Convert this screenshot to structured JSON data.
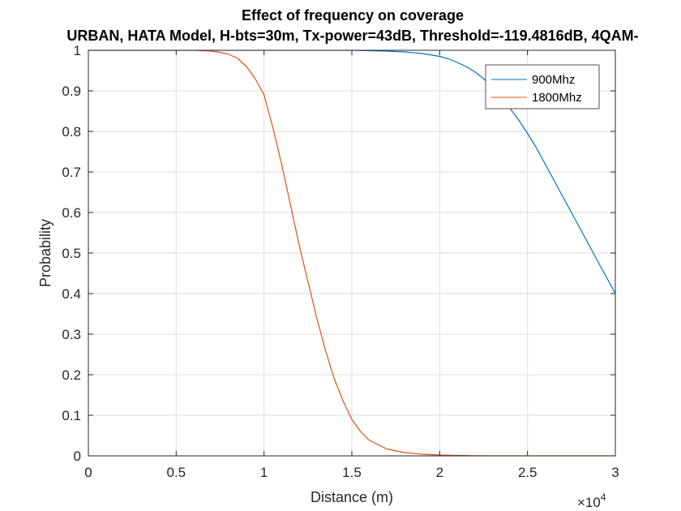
{
  "chart_data": {
    "type": "line",
    "title": "Effect of frequency on coverage",
    "subtitle": "URBAN, HATA Model, H-bts=30m, Tx-power=43dB, Threshold=-119.4816dB, 4QAM-",
    "xlabel": "Distance (m)",
    "ylabel": "Probability",
    "x_exponent_label": "×10",
    "x_exponent_power": "4",
    "xlim": [
      0,
      30000
    ],
    "ylim": [
      0,
      1
    ],
    "x_ticks": [
      0,
      5000,
      10000,
      15000,
      20000,
      25000,
      30000
    ],
    "x_tick_labels": [
      "0",
      "0.5",
      "1",
      "1.5",
      "2",
      "2.5",
      "3"
    ],
    "y_ticks": [
      0,
      0.1,
      0.2,
      0.3,
      0.4,
      0.5,
      0.6,
      0.7,
      0.8,
      0.9,
      1
    ],
    "y_tick_labels": [
      "0",
      "0.1",
      "0.2",
      "0.3",
      "0.4",
      "0.5",
      "0.6",
      "0.7",
      "0.8",
      "0.9",
      "1"
    ],
    "grid": true,
    "legend_position": "top-right",
    "series": [
      {
        "name": "900Mhz",
        "color": "#0072BD",
        "x": [
          0,
          15000,
          16000,
          17000,
          18000,
          19000,
          20000,
          20500,
          21000,
          21500,
          22000,
          22500,
          23000,
          23500,
          24000,
          24500,
          25000,
          25500,
          26000,
          26500,
          27000,
          27500,
          28000,
          28500,
          29000,
          29500,
          30000
        ],
        "y": [
          1,
          1,
          0.999,
          0.998,
          0.996,
          0.992,
          0.985,
          0.979,
          0.97,
          0.96,
          0.947,
          0.93,
          0.91,
          0.885,
          0.857,
          0.828,
          0.795,
          0.76,
          0.72,
          0.68,
          0.64,
          0.6,
          0.56,
          0.52,
          0.48,
          0.44,
          0.4
        ]
      },
      {
        "name": "1800Mhz",
        "color": "#D95319",
        "x": [
          0,
          6000,
          7000,
          7500,
          8000,
          8500,
          9000,
          9500,
          10000,
          10500,
          11000,
          11500,
          12000,
          12500,
          13000,
          13500,
          14000,
          14500,
          15000,
          15500,
          16000,
          17000,
          18000,
          19000,
          20000,
          21000,
          22000,
          23000,
          25000,
          30000
        ],
        "y": [
          1,
          1,
          0.998,
          0.995,
          0.99,
          0.98,
          0.96,
          0.93,
          0.89,
          0.81,
          0.72,
          0.62,
          0.52,
          0.43,
          0.34,
          0.26,
          0.19,
          0.135,
          0.09,
          0.06,
          0.038,
          0.017,
          0.008,
          0.004,
          0.002,
          0.001,
          0.0005,
          0,
          0,
          0
        ]
      }
    ]
  }
}
